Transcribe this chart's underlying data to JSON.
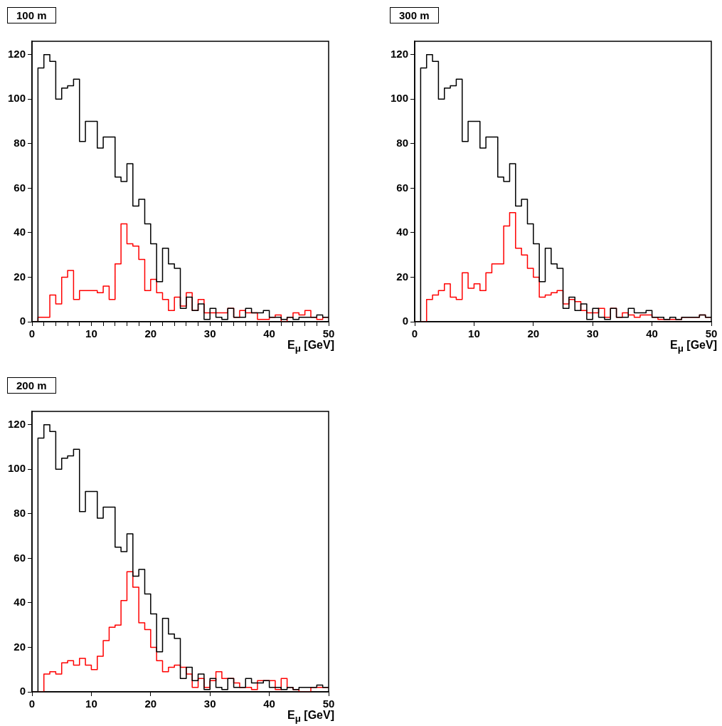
{
  "chart_data": [
    {
      "type": "histogram",
      "title": "100 m",
      "xlabel": "E$_{μ}$ [GeV]",
      "bins": [
        0,
        1,
        2,
        3,
        4,
        5,
        6,
        7,
        8,
        9,
        10,
        11,
        12,
        13,
        14,
        15,
        16,
        17,
        18,
        19,
        20,
        21,
        22,
        23,
        24,
        25,
        26,
        27,
        28,
        29,
        30,
        31,
        32,
        33,
        34,
        35,
        36,
        37,
        38,
        39,
        40,
        41,
        42,
        43,
        44,
        45,
        46,
        47,
        48,
        49,
        50
      ],
      "xlim": [
        0,
        50
      ],
      "xticks": [
        0,
        {
          "value": 2,
          "label": null
        },
        {
          "value": 4,
          "label": null
        },
        {
          "value": 6,
          "label": null
        },
        {
          "value": 8,
          "label": null
        },
        10,
        {
          "value": 12,
          "label": null
        },
        {
          "value": 14,
          "label": null
        },
        {
          "value": 16,
          "label": null
        },
        {
          "value": 18,
          "label": null
        },
        20,
        {
          "value": 22,
          "label": null
        },
        {
          "value": 24,
          "label": null
        },
        {
          "value": 26,
          "label": null
        },
        {
          "value": 28,
          "label": null
        },
        30,
        {
          "value": 32,
          "label": null
        },
        {
          "value": 34,
          "label": null
        },
        {
          "value": 36,
          "label": null
        },
        {
          "value": 38,
          "label": null
        },
        40,
        {
          "value": 42,
          "label": null
        },
        {
          "value": 44,
          "label": null
        },
        {
          "value": 46,
          "label": null
        },
        {
          "value": 48,
          "label": null
        },
        50
      ],
      "ylim": [
        0,
        126
      ],
      "yticks": [
        0,
        20,
        40,
        60,
        80,
        100,
        120
      ],
      "grid": false,
      "legend": false,
      "series": [
        {
          "color": "#000000",
          "values": [
            0,
            114,
            120,
            117,
            100,
            105,
            106,
            109,
            81,
            90,
            90,
            78,
            83,
            83,
            65,
            63,
            71,
            52,
            55,
            44,
            35,
            18,
            33,
            26,
            24,
            6,
            11,
            5,
            8,
            1,
            6,
            2,
            1,
            6,
            2,
            2,
            6,
            4,
            4,
            5,
            2,
            2,
            1,
            2,
            1,
            2,
            2,
            2,
            3,
            2
          ]
        },
        {
          "color": "#ff0000",
          "values": [
            0,
            2,
            2,
            12,
            8,
            20,
            23,
            10,
            14,
            14,
            14,
            13,
            16,
            10,
            26,
            44,
            35,
            34,
            28,
            14,
            19,
            13,
            10,
            5,
            11,
            7,
            13,
            5,
            10,
            4,
            4,
            4,
            4,
            6,
            2,
            5,
            4,
            4,
            1,
            1,
            2,
            3,
            0,
            2,
            4,
            3,
            5,
            2,
            1,
            2
          ]
        }
      ]
    },
    {
      "type": "histogram",
      "title": "300 m",
      "xlabel": "E$_{μ}$ [GeV]",
      "bins": [
        0,
        1,
        2,
        3,
        4,
        5,
        6,
        7,
        8,
        9,
        10,
        11,
        12,
        13,
        14,
        15,
        16,
        17,
        18,
        19,
        20,
        21,
        22,
        23,
        24,
        25,
        26,
        27,
        28,
        29,
        30,
        31,
        32,
        33,
        34,
        35,
        36,
        37,
        38,
        39,
        40,
        41,
        42,
        43,
        44,
        45,
        46,
        47,
        48,
        49,
        50
      ],
      "xlim": [
        0,
        50
      ],
      "xticks": [
        0,
        10,
        20,
        30,
        40,
        50
      ],
      "ylim": [
        0,
        126
      ],
      "yticks": [
        0,
        20,
        40,
        60,
        80,
        100,
        120
      ],
      "grid": false,
      "legend": false,
      "series": [
        {
          "color": "#000000",
          "values": [
            0,
            114,
            120,
            117,
            100,
            105,
            106,
            109,
            81,
            90,
            90,
            78,
            83,
            83,
            65,
            63,
            71,
            52,
            55,
            44,
            35,
            18,
            33,
            26,
            24,
            6,
            11,
            5,
            8,
            1,
            6,
            2,
            1,
            6,
            2,
            2,
            6,
            4,
            4,
            5,
            2,
            2,
            1,
            2,
            1,
            2,
            2,
            2,
            3,
            2
          ]
        },
        {
          "color": "#ff0000",
          "values": [
            0,
            0,
            10,
            12,
            14,
            17,
            11,
            10,
            22,
            15,
            17,
            14,
            22,
            26,
            26,
            43,
            49,
            33,
            30,
            24,
            20,
            11,
            12,
            13,
            14,
            8,
            10,
            9,
            5,
            4,
            4,
            6,
            2,
            6,
            2,
            4,
            3,
            2,
            3,
            3,
            2,
            1,
            1,
            1,
            1,
            2,
            2,
            2,
            3,
            2
          ]
        }
      ]
    },
    {
      "type": "histogram",
      "title": "200 m",
      "xlabel": "E$_{μ}$ [GeV]",
      "bins": [
        0,
        1,
        2,
        3,
        4,
        5,
        6,
        7,
        8,
        9,
        10,
        11,
        12,
        13,
        14,
        15,
        16,
        17,
        18,
        19,
        20,
        21,
        22,
        23,
        24,
        25,
        26,
        27,
        28,
        29,
        30,
        31,
        32,
        33,
        34,
        35,
        36,
        37,
        38,
        39,
        40,
        41,
        42,
        43,
        44,
        45,
        46,
        47,
        48,
        49,
        50
      ],
      "xlim": [
        0,
        50
      ],
      "xticks": [
        0,
        10,
        20,
        30,
        40,
        50
      ],
      "ylim": [
        0,
        126
      ],
      "yticks": [
        0,
        20,
        40,
        60,
        80,
        100,
        120
      ],
      "grid": false,
      "legend": false,
      "series": [
        {
          "color": "#000000",
          "values": [
            0,
            114,
            120,
            117,
            100,
            105,
            106,
            109,
            81,
            90,
            90,
            78,
            83,
            83,
            65,
            63,
            71,
            52,
            55,
            44,
            35,
            18,
            33,
            26,
            24,
            6,
            11,
            5,
            8,
            1,
            6,
            2,
            1,
            6,
            2,
            2,
            6,
            4,
            4,
            5,
            2,
            2,
            1,
            2,
            1,
            2,
            2,
            2,
            3,
            2
          ]
        },
        {
          "color": "#ff0000",
          "values": [
            0,
            0,
            8,
            9,
            8,
            13,
            14,
            12,
            15,
            12,
            10,
            16,
            23,
            29,
            30,
            41,
            54,
            47,
            31,
            28,
            20,
            14,
            9,
            11,
            12,
            11,
            8,
            2,
            6,
            2,
            5,
            9,
            6,
            6,
            4,
            2,
            2,
            1,
            5,
            5,
            5,
            1,
            6,
            2,
            1,
            0,
            0,
            2,
            2,
            2
          ]
        }
      ]
    }
  ]
}
